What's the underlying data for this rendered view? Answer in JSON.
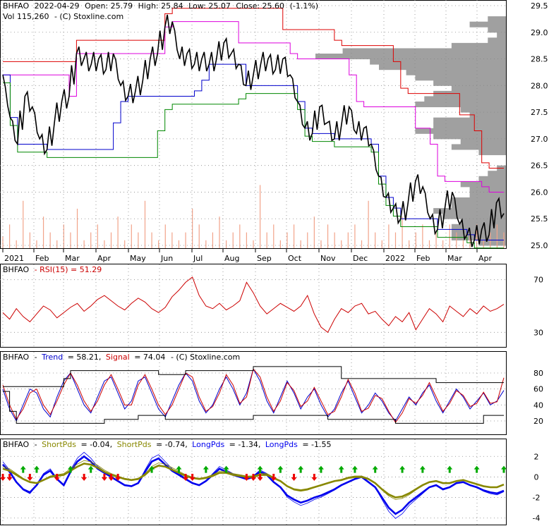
{
  "chart_data": [
    {
      "type": "line",
      "panel": "price",
      "header": {
        "symbol": "BHFAO",
        "date": "2022-04-29",
        "open": "Open: 25.79",
        "high": "High: 25.84",
        "low": "Low: 25.07",
        "close": "Close: 25.60",
        "change": "(-1.1%)",
        "volume": "Vol 115,260",
        "source": "- (C) Stoxline.com"
      },
      "x_tick_labels": [
        "2021",
        "Feb",
        "Mar",
        "Apr",
        "May",
        "Jun",
        "Jul",
        "Aug",
        "Sep",
        "Oct",
        "Nov",
        "Dec",
        "2022",
        "Feb",
        "Mar",
        "Apr"
      ],
      "y_tick_labels": [
        "29.5",
        "29.0",
        "28.5",
        "28.0",
        "27.5",
        "27.0",
        "26.5",
        "26.0",
        "25.5",
        "25.0"
      ],
      "ylim": [
        25.0,
        29.5
      ],
      "close_points": [
        [
          0,
          28.2
        ],
        [
          2,
          27.4
        ],
        [
          4,
          26.9
        ],
        [
          6,
          27.8
        ],
        [
          8,
          27.6
        ],
        [
          10,
          27.0
        ],
        [
          11,
          26.8
        ],
        [
          12,
          27.3
        ],
        [
          13,
          27.7
        ],
        [
          14,
          27.8
        ],
        [
          15,
          28.6
        ],
        [
          16,
          28.5
        ],
        [
          17,
          28.4
        ],
        [
          18,
          28.5
        ],
        [
          19,
          28.3
        ],
        [
          20,
          28.6
        ],
        [
          22,
          28.0
        ],
        [
          23,
          27.8
        ],
        [
          24,
          27.9
        ],
        [
          25,
          28.1
        ],
        [
          26,
          28.5
        ],
        [
          27,
          28.6
        ],
        [
          28,
          29.1
        ],
        [
          29,
          29.2
        ],
        [
          30,
          28.5
        ],
        [
          31,
          28.6
        ],
        [
          32,
          28.4
        ],
        [
          33,
          28.5
        ],
        [
          34,
          28.4
        ],
        [
          35,
          28.5
        ],
        [
          36,
          28.8
        ],
        [
          37,
          28.6
        ],
        [
          38,
          28.4
        ],
        [
          39,
          28.0
        ],
        [
          40,
          28.2
        ],
        [
          41,
          28.4
        ],
        [
          42,
          28.5
        ],
        [
          43,
          28.3
        ],
        [
          44,
          28.5
        ],
        [
          45,
          28.2
        ],
        [
          46,
          27.7
        ],
        [
          47,
          27.2
        ],
        [
          48,
          27.1
        ],
        [
          49,
          27.6
        ],
        [
          50,
          27.3
        ],
        [
          51,
          27.0
        ],
        [
          52,
          27.3
        ],
        [
          53,
          27.6
        ],
        [
          54,
          27.1
        ],
        [
          55,
          27.2
        ],
        [
          56,
          26.9
        ],
        [
          57,
          26.3
        ],
        [
          58,
          25.9
        ],
        [
          59,
          25.7
        ],
        [
          60,
          25.5
        ],
        [
          61,
          25.8
        ],
        [
          62,
          26.2
        ],
        [
          63,
          26.1
        ],
        [
          64,
          25.5
        ],
        [
          65,
          25.3
        ],
        [
          66,
          25.7
        ],
        [
          67,
          26.0
        ],
        [
          68,
          25.4
        ],
        [
          69,
          25.2
        ],
        [
          70,
          25.1
        ],
        [
          71,
          25.3
        ],
        [
          72,
          25.2
        ],
        [
          73,
          25.8
        ],
        [
          74,
          25.6
        ]
      ],
      "volume_scale_note": "",
      "volume_values": [
        0.15,
        0.3,
        0.1,
        0.6,
        0.2,
        0.1,
        0.4,
        0.2,
        0.1,
        0.3,
        0.2,
        0.5,
        0.1,
        0.2,
        0.3,
        0.1,
        0.2,
        0.4,
        0.1,
        0.3,
        0.2,
        0.6,
        0.2,
        0.1,
        0.3,
        0.2,
        0.1,
        0.2,
        0.5,
        0.3,
        0.1,
        0.2,
        0.4,
        0.1,
        0.2,
        0.3,
        0.2,
        0.1,
        0.8,
        0.2,
        0.3,
        0.1,
        0.2,
        0.3,
        0.1,
        0.2,
        0.4,
        0.1,
        0.3,
        0.2,
        0.1,
        0.2,
        0.3,
        0.1,
        0.6,
        0.2,
        0.1,
        0.3,
        0.2,
        0.4,
        0.1,
        0.2,
        0.3,
        0.1,
        0.2,
        0.1,
        0.3,
        0.2,
        0.1,
        0.2,
        0.3,
        0.1,
        0.2,
        0.3,
        0.2
      ]
    },
    {
      "type": "line",
      "panel": "rsi",
      "header": {
        "symbol": "BHFAO",
        "label": "- RSI(15) = 51.29"
      },
      "y_tick_labels": [
        "70",
        "30"
      ],
      "ylim": [
        20,
        80
      ],
      "values": [
        45,
        40,
        48,
        42,
        38,
        44,
        50,
        47,
        41,
        45,
        49,
        52,
        46,
        50,
        55,
        58,
        54,
        50,
        47,
        52,
        56,
        53,
        48,
        45,
        49,
        57,
        62,
        68,
        72,
        58,
        50,
        48,
        52,
        47,
        50,
        54,
        68,
        60,
        50,
        44,
        48,
        52,
        49,
        46,
        50,
        58,
        44,
        34,
        30,
        40,
        48,
        45,
        50,
        52,
        44,
        46,
        40,
        35,
        42,
        38,
        45,
        32,
        40,
        48,
        44,
        38,
        50,
        46,
        42,
        48,
        44,
        50,
        46,
        48,
        51.29
      ]
    },
    {
      "type": "line",
      "panel": "trend",
      "header": {
        "symbol": "BHFAO",
        "trend_label": "Trend",
        "trend_value": "= 58.21,",
        "signal_label": "Signal",
        "signal_value": "= 74.04",
        "source": "- (C) Stoxline.com"
      },
      "y_tick_labels": [
        "80",
        "60",
        "40",
        "20"
      ],
      "ylim": [
        5,
        95
      ],
      "series": [
        {
          "name": "Trend",
          "values": [
            60,
            35,
            20,
            40,
            60,
            55,
            35,
            25,
            50,
            70,
            80,
            60,
            40,
            30,
            50,
            70,
            75,
            55,
            35,
            45,
            70,
            75,
            55,
            35,
            25,
            45,
            65,
            80,
            70,
            45,
            30,
            40,
            60,
            75,
            60,
            40,
            55,
            85,
            70,
            45,
            30,
            50,
            70,
            55,
            35,
            50,
            60,
            40,
            25,
            35,
            55,
            70,
            50,
            30,
            40,
            55,
            45,
            30,
            20,
            35,
            50,
            40,
            55,
            65,
            45,
            30,
            45,
            60,
            50,
            35,
            45,
            55,
            40,
            45,
            58.21
          ]
        },
        {
          "name": "Signal",
          "values": [
            65,
            40,
            22,
            35,
            55,
            60,
            40,
            28,
            45,
            65,
            80,
            65,
            45,
            32,
            45,
            65,
            78,
            60,
            40,
            40,
            65,
            78,
            60,
            40,
            28,
            40,
            60,
            80,
            75,
            50,
            32,
            38,
            55,
            78,
            65,
            42,
            50,
            85,
            75,
            50,
            32,
            45,
            68,
            58,
            38,
            45,
            62,
            45,
            28,
            32,
            50,
            72,
            55,
            32,
            36,
            52,
            48,
            32,
            18,
            30,
            48,
            42,
            52,
            68,
            50,
            32,
            42,
            58,
            52,
            38,
            42,
            56,
            42,
            44,
            74.04
          ]
        }
      ]
    },
    {
      "type": "line",
      "panel": "pds",
      "header": {
        "symbol": "BHFAO",
        "short1_label": "ShortPds",
        "short1_value": "= -0.04,",
        "short2_label": "ShortPds",
        "short2_value": "= -0.74,",
        "long1_label": "LongPds",
        "long1_value": "= -1.34,",
        "long2_label": "LongPds",
        "long2_value": "= -1.55"
      },
      "y_tick_labels": [
        "2",
        "0",
        "-2",
        "-4"
      ],
      "ylim": [
        -4.5,
        2.5
      ],
      "series": [
        {
          "name": "ShortPds",
          "values": [
            1.2,
            0.5,
            -0.5,
            -1.2,
            -1.5,
            -0.8,
            0.2,
            0.6,
            -0.2,
            -0.8,
            0.5,
            1.5,
            2.0,
            1.5,
            0.8,
            0.4,
            0.0,
            -0.4,
            -0.8,
            -0.9,
            -0.6,
            0.5,
            1.5,
            1.8,
            1.2,
            0.6,
            0.2,
            -0.2,
            -0.6,
            -0.8,
            -0.4,
            0.2,
            0.8,
            0.5,
            0.2,
            0.0,
            -0.2,
            0.0,
            0.5,
            0.2,
            -0.5,
            -1.0,
            -1.8,
            -2.2,
            -2.5,
            -2.3,
            -2.0,
            -1.8,
            -1.5,
            -1.2,
            -0.8,
            -0.5,
            -0.2,
            0.0,
            -0.5,
            -1.0,
            -2.0,
            -3.0,
            -3.6,
            -3.2,
            -2.5,
            -2.0,
            -1.5,
            -1.0,
            -0.8,
            -1.2,
            -1.0,
            -0.6,
            -0.5,
            -0.8,
            -1.0,
            -1.3,
            -1.5,
            -1.6,
            -1.34
          ]
        },
        {
          "name": "LongPds",
          "values": [
            0.8,
            0.6,
            0.2,
            -0.2,
            -0.5,
            -0.6,
            -0.3,
            0.0,
            0.1,
            0.2,
            0.6,
            1.0,
            1.3,
            1.2,
            0.9,
            0.5,
            0.2,
            0.0,
            -0.2,
            -0.3,
            -0.2,
            0.2,
            0.8,
            1.1,
            1.0,
            0.7,
            0.4,
            0.1,
            -0.1,
            -0.2,
            -0.1,
            0.1,
            0.4,
            0.4,
            0.2,
            0.1,
            0.0,
            0.0,
            0.2,
            0.2,
            -0.1,
            -0.4,
            -0.9,
            -1.2,
            -1.3,
            -1.2,
            -1.0,
            -0.8,
            -0.6,
            -0.4,
            -0.3,
            -0.1,
            0.0,
            0.0,
            -0.2,
            -0.6,
            -1.2,
            -1.7,
            -2.0,
            -1.9,
            -1.6,
            -1.2,
            -0.8,
            -0.5,
            -0.4,
            -0.6,
            -0.6,
            -0.4,
            -0.3,
            -0.5,
            -0.7,
            -0.9,
            -1.0,
            -1.0,
            -0.74
          ]
        }
      ],
      "up_arrows_at": [
        3,
        5,
        10,
        13,
        22,
        26,
        30,
        33,
        38,
        41,
        44,
        47,
        50,
        52,
        55,
        59,
        62,
        66,
        70,
        74
      ],
      "down_arrows_at": [
        0,
        1,
        4,
        8,
        12,
        15,
        16,
        17,
        27,
        28,
        36,
        37,
        38,
        40,
        43,
        46
      ]
    }
  ],
  "colors": {
    "price": "#000000",
    "volume": "#f2a38a",
    "band_red": "#dd0000",
    "band_magenta": "#dd00dd",
    "band_blue": "#0000cc",
    "band_green": "#008800",
    "profile": "#a0a0a0",
    "rsi": "#cc0000",
    "trend": "#0000cc",
    "signal": "#cc0000",
    "pds_blue": "#0000ee",
    "pds_olive": "#888800",
    "arrow_up": "#00aa00",
    "arrow_down": "#ee0000"
  }
}
